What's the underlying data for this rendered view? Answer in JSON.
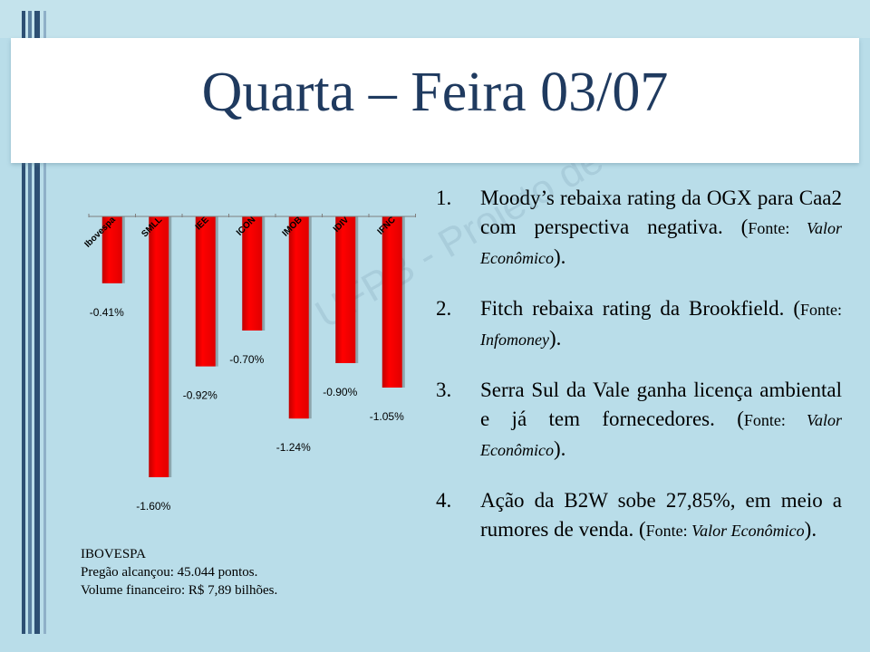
{
  "title": "Quarta – Feira 03/07",
  "chart_data": {
    "type": "bar",
    "categories": [
      "Ibovespa",
      "SMLL",
      "IEE",
      "ICON",
      "IMOB",
      "IDIV",
      "IFNC"
    ],
    "values": [
      -0.41,
      -1.6,
      -0.92,
      -0.7,
      -1.24,
      -0.9,
      -1.05
    ],
    "data_labels": [
      "-0.41%",
      "-1.60%",
      "-0.92%",
      "-0.70%",
      "-1.24%",
      "-0.90%",
      "-1.05%"
    ],
    "ylim": [
      -1.6,
      0
    ],
    "bar_color": "#ff0000",
    "grid": false,
    "legend": "none"
  },
  "ibovespa_info": {
    "heading": "IBOVESPA",
    "line1": "Pregão alcançou: 45.044 pontos.",
    "line2": "Volume financeiro:  R$ 7,89 bilhões."
  },
  "news": [
    {
      "num": "1.",
      "text": "Moody’s rebaixa rating da OGX para Caa2 com perspectiva negativa. (",
      "src_label": "Fonte: ",
      "src_name": "Valor Econômico",
      "close": ")."
    },
    {
      "num": "2.",
      "text": "Fitch rebaixa rating da Brookfield. (",
      "src_label": "Fonte: ",
      "src_name": "Infomoney",
      "close": ")."
    },
    {
      "num": "3.",
      "text": "Serra Sul da Vale ganha licença ambiental e já tem fornecedores. (",
      "src_label": "Fonte: ",
      "src_name": "Valor Econômico",
      "close": ")."
    },
    {
      "num": "4.",
      "text": "Ação da B2W sobe 27,85%, em meio a rumores de venda. (",
      "src_label": "Fonte: ",
      "src_name": "Valor Econômico",
      "close": ")."
    }
  ],
  "watermark": "UFPB - Projeto de Extensão",
  "colors": {
    "title": "#1f3a5f",
    "background": "#b9dde9",
    "bars": "#ff0000"
  }
}
